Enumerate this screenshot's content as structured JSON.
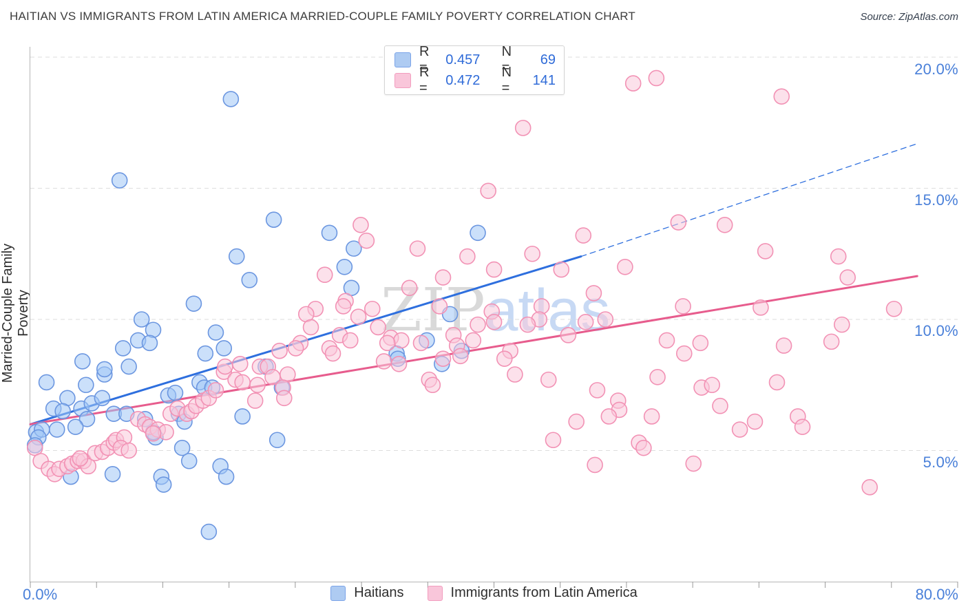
{
  "title": "HAITIAN VS IMMIGRANTS FROM LATIN AMERICA MARRIED-COUPLE FAMILY POVERTY CORRELATION CHART",
  "source": "Source: ZipAtlas.com",
  "watermark": {
    "zip": "ZIP",
    "atlas": "atlas"
  },
  "y_axis": {
    "label": "Married-Couple Family Poverty",
    "ticks": [
      "20.0%",
      "15.0%",
      "10.0%",
      "5.0%"
    ],
    "tick_values": [
      20,
      15,
      10,
      5
    ]
  },
  "x_axis": {
    "min_label": "0.0%",
    "max_label": "80.0%",
    "min": 0,
    "max": 80,
    "tick_count": 15
  },
  "legend_box": {
    "rows": [
      {
        "r_label": "R =",
        "r_value": "0.457",
        "n_label": "N =",
        "n_value": "69",
        "swatch_fill": "#aecbf2",
        "swatch_border": "#7aa3e8"
      },
      {
        "r_label": "R =",
        "r_value": "0.472",
        "n_label": "N =",
        "n_value": "141",
        "swatch_fill": "#f9c6da",
        "swatch_border": "#f29cbe"
      }
    ]
  },
  "bottom_legend": [
    {
      "label": "Haitians",
      "swatch_fill": "#aecbf2",
      "swatch_border": "#7aa3e8"
    },
    {
      "label": "Immigrants from Latin America",
      "swatch_fill": "#f9c6da",
      "swatch_border": "#f29cbe"
    }
  ],
  "colors": {
    "grid": "#dedede",
    "axis": "#b5b5b5",
    "tick": "#9a9a9a",
    "axis_label_blue": "#4a80d9",
    "blue_line": "#2e6fde",
    "pink_line": "#e75c8d",
    "blue_marker_stroke": "#6b96e0",
    "blue_marker_fill": "rgba(160,199,245,0.55)",
    "pink_marker_stroke": "#f291b4",
    "pink_marker_fill": "rgba(250,200,218,0.55)"
  },
  "chart_data": {
    "type": "scatter",
    "title": "HAITIAN VS IMMIGRANTS FROM LATIN AMERICA MARRIED-COUPLE FAMILY POVERTY CORRELATION CHART",
    "xlabel": "",
    "ylabel": "Married-Couple Family Poverty",
    "xlim": [
      0,
      80
    ],
    "ylim": [
      0,
      20.4
    ],
    "grid": true,
    "x_tick_labels_shown": [
      "0.0%",
      "80.0%"
    ],
    "y_tick_labels_shown": [
      "5.0%",
      "10.0%",
      "15.0%",
      "20.0%"
    ],
    "legend_position": "top-center and bottom-center",
    "series": [
      {
        "name": "Haitians",
        "R": 0.457,
        "N": 69,
        "points": [
          [
            1.4,
            7.6
          ],
          [
            4.8,
            7.5
          ],
          [
            6.4,
            7.9
          ],
          [
            3.2,
            7.0
          ],
          [
            2.0,
            6.6
          ],
          [
            2.8,
            6.5
          ],
          [
            4.4,
            6.6
          ],
          [
            5.3,
            6.8
          ],
          [
            6.2,
            7.0
          ],
          [
            4.9,
            6.2
          ],
          [
            3.9,
            5.9
          ],
          [
            2.3,
            5.8
          ],
          [
            0.5,
            5.7
          ],
          [
            1.0,
            5.8
          ],
          [
            0.7,
            5.5
          ],
          [
            0.4,
            5.2
          ],
          [
            7.2,
            6.4
          ],
          [
            8.3,
            6.4
          ],
          [
            9.9,
            6.2
          ],
          [
            11.9,
            7.1
          ],
          [
            12.5,
            7.2
          ],
          [
            12.8,
            6.4
          ],
          [
            13.3,
            6.1
          ],
          [
            14.6,
            7.6
          ],
          [
            15.0,
            7.4
          ],
          [
            15.7,
            7.4
          ],
          [
            10.8,
            5.5
          ],
          [
            10.6,
            5.7
          ],
          [
            3.5,
            4.0
          ],
          [
            7.1,
            4.1
          ],
          [
            11.3,
            4.0
          ],
          [
            11.5,
            3.7
          ],
          [
            13.1,
            5.1
          ],
          [
            13.7,
            4.6
          ],
          [
            16.4,
            4.4
          ],
          [
            16.9,
            4.0
          ],
          [
            18.3,
            6.3
          ],
          [
            15.4,
            1.9
          ],
          [
            7.7,
            15.3
          ],
          [
            17.8,
            12.4
          ],
          [
            18.9,
            11.5
          ],
          [
            14.1,
            10.6
          ],
          [
            9.6,
            10.0
          ],
          [
            10.6,
            9.6
          ],
          [
            9.3,
            9.2
          ],
          [
            10.3,
            9.1
          ],
          [
            8.0,
            8.9
          ],
          [
            8.5,
            8.2
          ],
          [
            4.5,
            8.4
          ],
          [
            6.4,
            8.1
          ],
          [
            16.0,
            9.5
          ],
          [
            16.7,
            8.9
          ],
          [
            15.1,
            8.7
          ],
          [
            17.3,
            18.4
          ],
          [
            21.0,
            13.8
          ],
          [
            25.8,
            13.3
          ],
          [
            27.9,
            12.7
          ],
          [
            27.1,
            12.0
          ],
          [
            27.7,
            11.2
          ],
          [
            38.6,
            13.3
          ],
          [
            36.2,
            10.2
          ],
          [
            34.2,
            9.2
          ],
          [
            31.6,
            8.7
          ],
          [
            31.7,
            8.5
          ],
          [
            35.5,
            8.3
          ],
          [
            37.2,
            8.8
          ],
          [
            20.3,
            8.2
          ],
          [
            21.7,
            7.4
          ],
          [
            21.3,
            5.4
          ]
        ]
      },
      {
        "name": "Immigrants from Latin America",
        "R": 0.472,
        "N": 141,
        "points": [
          [
            0.4,
            5.1
          ],
          [
            0.9,
            4.6
          ],
          [
            1.6,
            4.3
          ],
          [
            2.1,
            4.1
          ],
          [
            2.5,
            4.3
          ],
          [
            3.2,
            4.4
          ],
          [
            3.6,
            4.5
          ],
          [
            4.1,
            4.6
          ],
          [
            4.6,
            4.6
          ],
          [
            5.0,
            4.4
          ],
          [
            4.3,
            4.7
          ],
          [
            5.6,
            4.9
          ],
          [
            6.2,
            4.95
          ],
          [
            6.7,
            5.1
          ],
          [
            7.2,
            5.3
          ],
          [
            7.4,
            5.4
          ],
          [
            8.1,
            5.5
          ],
          [
            7.8,
            5.1
          ],
          [
            8.5,
            5.0
          ],
          [
            9.3,
            6.2
          ],
          [
            9.9,
            6.0
          ],
          [
            10.3,
            5.9
          ],
          [
            11.0,
            5.8
          ],
          [
            11.7,
            5.7
          ],
          [
            12.1,
            6.4
          ],
          [
            12.7,
            6.6
          ],
          [
            13.5,
            6.4
          ],
          [
            13.9,
            6.5
          ],
          [
            14.3,
            6.7
          ],
          [
            14.9,
            6.9
          ],
          [
            15.4,
            7.0
          ],
          [
            16.0,
            7.3
          ],
          [
            16.7,
            8.0
          ],
          [
            17.7,
            7.7
          ],
          [
            18.3,
            7.6
          ],
          [
            19.4,
            6.9
          ],
          [
            19.6,
            7.5
          ],
          [
            10.6,
            5.65
          ],
          [
            16.8,
            8.2
          ],
          [
            18.1,
            8.3
          ],
          [
            19.8,
            8.2
          ],
          [
            28.5,
            13.6
          ],
          [
            29.0,
            13.0
          ],
          [
            25.4,
            11.7
          ],
          [
            27.2,
            10.7
          ],
          [
            33.4,
            12.7
          ],
          [
            37.7,
            12.4
          ],
          [
            39.5,
            14.9
          ],
          [
            40.0,
            11.9
          ],
          [
            35.6,
            11.6
          ],
          [
            32.7,
            11.2
          ],
          [
            29.5,
            10.4
          ],
          [
            35.3,
            10.5
          ],
          [
            24.6,
            10.4
          ],
          [
            23.8,
            10.2
          ],
          [
            28.3,
            10.1
          ],
          [
            24.2,
            9.7
          ],
          [
            27.0,
            10.5
          ],
          [
            26.7,
            9.4
          ],
          [
            27.6,
            9.2
          ],
          [
            30.0,
            9.7
          ],
          [
            23.3,
            9.1
          ],
          [
            22.9,
            8.9
          ],
          [
            21.5,
            8.8
          ],
          [
            25.8,
            8.9
          ],
          [
            26.1,
            8.7
          ],
          [
            31.1,
            9.3
          ],
          [
            32.0,
            9.2
          ],
          [
            30.8,
            9.1
          ],
          [
            33.7,
            9.1
          ],
          [
            30.5,
            8.4
          ],
          [
            31.8,
            8.3
          ],
          [
            20.5,
            8.2
          ],
          [
            20.9,
            7.8
          ],
          [
            22.2,
            7.9
          ],
          [
            36.5,
            9.4
          ],
          [
            36.8,
            9.0
          ],
          [
            37.1,
            8.6
          ],
          [
            35.6,
            8.5
          ],
          [
            34.4,
            7.7
          ],
          [
            34.7,
            7.5
          ],
          [
            21.8,
            7.4
          ],
          [
            21.9,
            7.0
          ],
          [
            38.6,
            9.8
          ],
          [
            38.2,
            9.2
          ],
          [
            39.8,
            10.3
          ],
          [
            40.0,
            9.9
          ],
          [
            52.0,
            19.0
          ],
          [
            54.0,
            19.2
          ],
          [
            42.5,
            17.3
          ],
          [
            47.7,
            13.2
          ],
          [
            55.9,
            13.7
          ],
          [
            59.9,
            13.6
          ],
          [
            43.3,
            12.5
          ],
          [
            45.8,
            11.9
          ],
          [
            51.3,
            12.0
          ],
          [
            48.6,
            11.0
          ],
          [
            44.1,
            10.5
          ],
          [
            43.9,
            10.0
          ],
          [
            42.9,
            9.8
          ],
          [
            47.9,
            9.9
          ],
          [
            49.6,
            10.0
          ],
          [
            46.4,
            9.4
          ],
          [
            41.4,
            8.8
          ],
          [
            40.9,
            8.5
          ],
          [
            56.3,
            10.5
          ],
          [
            54.9,
            9.2
          ],
          [
            57.8,
            9.1
          ],
          [
            56.4,
            8.7
          ],
          [
            41.8,
            7.9
          ],
          [
            44.7,
            7.7
          ],
          [
            54.1,
            7.8
          ],
          [
            48.9,
            7.3
          ],
          [
            50.7,
            6.9
          ],
          [
            50.8,
            6.55
          ],
          [
            49.9,
            6.3
          ],
          [
            47.1,
            6.1
          ],
          [
            53.6,
            6.3
          ],
          [
            57.9,
            7.4
          ],
          [
            58.8,
            7.5
          ],
          [
            59.5,
            6.7
          ],
          [
            45.1,
            5.4
          ],
          [
            52.5,
            5.3
          ],
          [
            52.9,
            5.1
          ],
          [
            57.2,
            4.5
          ],
          [
            48.7,
            4.45
          ],
          [
            64.8,
            18.5
          ],
          [
            63.4,
            12.6
          ],
          [
            69.7,
            12.4
          ],
          [
            70.5,
            11.6
          ],
          [
            63.0,
            10.45
          ],
          [
            74.5,
            10.4
          ],
          [
            70.0,
            9.8
          ],
          [
            69.1,
            9.15
          ],
          [
            65.0,
            9.0
          ],
          [
            64.4,
            7.6
          ],
          [
            66.2,
            6.3
          ],
          [
            66.6,
            5.9
          ],
          [
            62.5,
            6.1
          ],
          [
            61.2,
            5.8
          ],
          [
            72.4,
            3.6
          ]
        ]
      }
    ],
    "trend_lines": [
      {
        "series": "Haitians",
        "style": "solid",
        "from": [
          0,
          6.0
        ],
        "to": [
          47.5,
          12.4
        ]
      },
      {
        "series": "Haitians",
        "style": "dashed",
        "from": [
          47.5,
          12.4
        ],
        "to": [
          76.5,
          16.7
        ]
      },
      {
        "series": "Immigrants from Latin America",
        "style": "solid",
        "from": [
          0,
          6.0
        ],
        "to": [
          76.5,
          11.65
        ]
      }
    ]
  }
}
